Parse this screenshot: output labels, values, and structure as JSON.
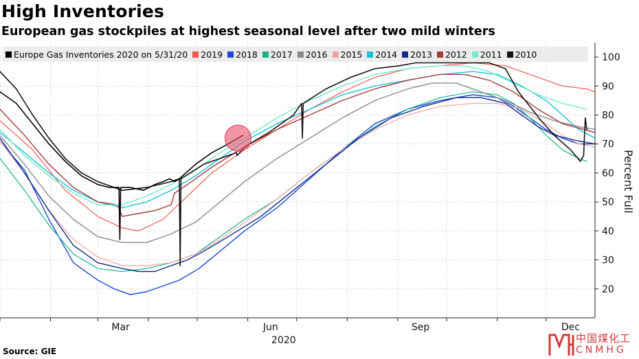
{
  "header": {
    "title": "High Inventories",
    "subtitle": "European gas stockpiles at highest seasonal level after two mild winters"
  },
  "footer": {
    "source": "Source: GIE"
  },
  "watermark": {
    "cn": "中国煤化工",
    "en": "CNMHG",
    "color": "#cf3a3a"
  },
  "chart_data": {
    "type": "line",
    "title": "High Inventories",
    "subtitle": "European gas stockpiles at highest seasonal level after two mild winters",
    "ylabel": "Percent Full",
    "xlabel": "2020",
    "ylim": [
      10,
      105
    ],
    "xlim": [
      0,
      365
    ],
    "yticks": [
      20,
      30,
      40,
      50,
      60,
      70,
      80,
      90,
      100
    ],
    "xticks": [
      {
        "label": "Mar",
        "x": 74
      },
      {
        "label": "Jun",
        "x": 166
      },
      {
        "label": "Sep",
        "x": 258
      },
      {
        "label": "Dec",
        "x": 350
      }
    ],
    "minor_xticks": [
      0,
      31,
      60,
      91,
      121,
      152,
      182,
      213,
      244,
      274,
      305,
      335
    ],
    "x_unit": "day of year",
    "grid": true,
    "legend_position": "top",
    "highlight": {
      "x": 146,
      "y": 72,
      "color": "#e8506a"
    },
    "series": [
      {
        "name": "Europe Gas Inventories 2020 on 5/31/20",
        "color": "#000000",
        "width": 1.6,
        "points": [
          [
            0,
            88
          ],
          [
            10,
            84
          ],
          [
            20,
            77
          ],
          [
            30,
            70
          ],
          [
            40,
            64
          ],
          [
            50,
            59
          ],
          [
            60,
            56
          ],
          [
            67,
            55
          ],
          [
            70,
            55
          ],
          [
            73,
            55
          ],
          [
            73.5,
            37
          ],
          [
            74,
            55
          ],
          [
            80,
            55
          ],
          [
            88,
            54
          ],
          [
            95,
            56
          ],
          [
            100,
            57
          ],
          [
            104,
            58
          ],
          [
            107,
            57
          ],
          [
            110,
            58
          ],
          [
            114,
            60
          ],
          [
            120,
            63
          ],
          [
            130,
            67
          ],
          [
            140,
            70
          ],
          [
            146,
            72
          ],
          [
            149,
            73
          ]
        ]
      },
      {
        "name": "2019",
        "color": "#ef5a4f",
        "width": 1.2,
        "points": [
          [
            0,
            78
          ],
          [
            20,
            68
          ],
          [
            40,
            54
          ],
          [
            60,
            45
          ],
          [
            75,
            41
          ],
          [
            85,
            40
          ],
          [
            100,
            44
          ],
          [
            115,
            52
          ],
          [
            130,
            60
          ],
          [
            150,
            68
          ],
          [
            170,
            75
          ],
          [
            190,
            82
          ],
          [
            210,
            88
          ],
          [
            230,
            93
          ],
          [
            250,
            96
          ],
          [
            270,
            97
          ],
          [
            290,
            98
          ],
          [
            310,
            97
          ],
          [
            320,
            95
          ],
          [
            330,
            93
          ],
          [
            345,
            90
          ],
          [
            360,
            89
          ],
          [
            365,
            88
          ]
        ]
      },
      {
        "name": "2018",
        "color": "#1a47d8",
        "width": 1.4,
        "points": [
          [
            0,
            71
          ],
          [
            15,
            61
          ],
          [
            30,
            44
          ],
          [
            45,
            29
          ],
          [
            60,
            23
          ],
          [
            70,
            20
          ],
          [
            80,
            18
          ],
          [
            90,
            19
          ],
          [
            100,
            21
          ],
          [
            110,
            23
          ],
          [
            122,
            27
          ],
          [
            135,
            33
          ],
          [
            150,
            40
          ],
          [
            170,
            48
          ],
          [
            190,
            58
          ],
          [
            210,
            68
          ],
          [
            230,
            77
          ],
          [
            250,
            82
          ],
          [
            270,
            85
          ],
          [
            290,
            87
          ],
          [
            305,
            86
          ],
          [
            315,
            83
          ],
          [
            325,
            79
          ],
          [
            335,
            75
          ],
          [
            345,
            72
          ],
          [
            355,
            70
          ],
          [
            365,
            70
          ]
        ]
      },
      {
        "name": "2017",
        "color": "#14b38a",
        "width": 1.2,
        "points": [
          [
            0,
            65
          ],
          [
            15,
            54
          ],
          [
            30,
            42
          ],
          [
            45,
            32
          ],
          [
            60,
            27
          ],
          [
            75,
            26
          ],
          [
            90,
            27
          ],
          [
            105,
            29
          ],
          [
            120,
            32
          ],
          [
            135,
            38
          ],
          [
            150,
            44
          ],
          [
            170,
            51
          ],
          [
            190,
            60
          ],
          [
            210,
            68
          ],
          [
            230,
            76
          ],
          [
            250,
            82
          ],
          [
            270,
            86
          ],
          [
            290,
            88
          ],
          [
            305,
            87
          ],
          [
            315,
            84
          ],
          [
            325,
            79
          ],
          [
            335,
            73
          ],
          [
            345,
            68
          ],
          [
            355,
            65
          ],
          [
            360,
            64
          ]
        ]
      },
      {
        "name": "2016",
        "color": "#8a8a8a",
        "width": 1.4,
        "points": [
          [
            0,
            73
          ],
          [
            15,
            63
          ],
          [
            30,
            52
          ],
          [
            45,
            44
          ],
          [
            60,
            38
          ],
          [
            75,
            36
          ],
          [
            90,
            36
          ],
          [
            105,
            39
          ],
          [
            120,
            43
          ],
          [
            135,
            50
          ],
          [
            150,
            57
          ],
          [
            170,
            65
          ],
          [
            190,
            72
          ],
          [
            210,
            79
          ],
          [
            230,
            85
          ],
          [
            250,
            89
          ],
          [
            265,
            91
          ],
          [
            280,
            91
          ],
          [
            295,
            88
          ],
          [
            310,
            85
          ],
          [
            325,
            81
          ],
          [
            340,
            78
          ],
          [
            355,
            76
          ],
          [
            365,
            75
          ]
        ]
      },
      {
        "name": "2015",
        "color": "#f7a3a3",
        "width": 1.2,
        "points": [
          [
            0,
            71
          ],
          [
            15,
            60
          ],
          [
            30,
            47
          ],
          [
            45,
            37
          ],
          [
            60,
            31
          ],
          [
            75,
            28
          ],
          [
            90,
            28
          ],
          [
            105,
            29
          ],
          [
            120,
            32
          ],
          [
            135,
            37
          ],
          [
            150,
            43
          ],
          [
            170,
            51
          ],
          [
            190,
            60
          ],
          [
            210,
            68
          ],
          [
            230,
            75
          ],
          [
            250,
            80
          ],
          [
            270,
            83
          ],
          [
            290,
            84
          ],
          [
            305,
            84
          ],
          [
            320,
            82
          ],
          [
            335,
            77
          ],
          [
            345,
            73
          ],
          [
            355,
            70
          ],
          [
            365,
            69
          ]
        ]
      },
      {
        "name": "2014",
        "color": "#17c3d8",
        "width": 1.4,
        "points": [
          [
            0,
            74
          ],
          [
            15,
            67
          ],
          [
            30,
            60
          ],
          [
            45,
            54
          ],
          [
            60,
            50
          ],
          [
            75,
            48
          ],
          [
            90,
            50
          ],
          [
            105,
            54
          ],
          [
            120,
            59
          ],
          [
            135,
            65
          ],
          [
            150,
            71
          ],
          [
            170,
            77
          ],
          [
            190,
            82
          ],
          [
            210,
            87
          ],
          [
            230,
            90
          ],
          [
            250,
            92
          ],
          [
            270,
            94
          ],
          [
            290,
            95
          ],
          [
            305,
            94
          ],
          [
            320,
            90
          ],
          [
            335,
            85
          ],
          [
            345,
            80
          ],
          [
            355,
            75
          ],
          [
            365,
            72
          ]
        ]
      },
      {
        "name": "2013",
        "color": "#0f2a86",
        "width": 1.4,
        "points": [
          [
            0,
            72
          ],
          [
            15,
            60
          ],
          [
            30,
            47
          ],
          [
            45,
            35
          ],
          [
            60,
            29
          ],
          [
            75,
            27
          ],
          [
            85,
            26
          ],
          [
            95,
            26
          ],
          [
            105,
            28
          ],
          [
            115,
            30
          ],
          [
            125,
            33
          ],
          [
            140,
            38
          ],
          [
            160,
            45
          ],
          [
            180,
            54
          ],
          [
            200,
            63
          ],
          [
            220,
            72
          ],
          [
            240,
            79
          ],
          [
            260,
            83
          ],
          [
            280,
            86
          ],
          [
            295,
            86
          ],
          [
            310,
            84
          ],
          [
            320,
            80
          ],
          [
            330,
            76
          ],
          [
            340,
            73
          ],
          [
            355,
            71
          ],
          [
            365,
            70
          ]
        ]
      },
      {
        "name": "2012",
        "color": "#a33a3a",
        "width": 1.4,
        "points": [
          [
            0,
            82
          ],
          [
            15,
            73
          ],
          [
            30,
            63
          ],
          [
            45,
            55
          ],
          [
            60,
            50
          ],
          [
            72,
            49
          ],
          [
            75,
            45
          ],
          [
            85,
            46
          ],
          [
            95,
            47
          ],
          [
            105,
            49
          ],
          [
            107,
            53
          ],
          [
            115,
            56
          ],
          [
            130,
            62
          ],
          [
            150,
            69
          ],
          [
            170,
            75
          ],
          [
            190,
            80
          ],
          [
            210,
            85
          ],
          [
            230,
            89
          ],
          [
            250,
            92
          ],
          [
            270,
            94
          ],
          [
            285,
            94
          ],
          [
            300,
            92
          ],
          [
            315,
            88
          ],
          [
            330,
            82
          ],
          [
            345,
            77
          ],
          [
            365,
            74
          ]
        ]
      },
      {
        "name": "2011",
        "color": "#79e8c8",
        "width": 1.4,
        "points": [
          [
            0,
            75
          ],
          [
            15,
            66
          ],
          [
            30,
            59
          ],
          [
            45,
            53
          ],
          [
            60,
            49
          ],
          [
            75,
            49
          ],
          [
            90,
            52
          ],
          [
            105,
            56
          ],
          [
            120,
            61
          ],
          [
            135,
            67
          ],
          [
            150,
            72
          ],
          [
            170,
            79
          ],
          [
            190,
            85
          ],
          [
            210,
            90
          ],
          [
            230,
            94
          ],
          [
            250,
            96
          ],
          [
            270,
            97
          ],
          [
            285,
            97
          ],
          [
            300,
            95
          ],
          [
            315,
            91
          ],
          [
            330,
            87
          ],
          [
            345,
            84
          ],
          [
            360,
            82
          ]
        ]
      },
      {
        "name": "2010",
        "color": "#111111",
        "width": 1.6,
        "points": [
          [
            0,
            95
          ],
          [
            10,
            89
          ],
          [
            20,
            80
          ],
          [
            30,
            72
          ],
          [
            40,
            65
          ],
          [
            50,
            60
          ],
          [
            60,
            57
          ],
          [
            75,
            54
          ],
          [
            90,
            55
          ],
          [
            105,
            57
          ],
          [
            110,
            58
          ],
          [
            110.5,
            28
          ],
          [
            111,
            58
          ],
          [
            125,
            63
          ],
          [
            140,
            66
          ],
          [
            145,
            67
          ],
          [
            145.5,
            66
          ],
          [
            150,
            69
          ],
          [
            165,
            74
          ],
          [
            180,
            80
          ],
          [
            185,
            84
          ],
          [
            185.5,
            72
          ],
          [
            186,
            84
          ],
          [
            200,
            89
          ],
          [
            215,
            93
          ],
          [
            230,
            96
          ],
          [
            245,
            97
          ],
          [
            255,
            98
          ],
          [
            270,
            98
          ],
          [
            285,
            98
          ],
          [
            300,
            98
          ],
          [
            310,
            96
          ],
          [
            318,
            88
          ],
          [
            325,
            83
          ],
          [
            332,
            78
          ],
          [
            340,
            73
          ],
          [
            350,
            68
          ],
          [
            356,
            64
          ],
          [
            358,
            66
          ],
          [
            359,
            79
          ],
          [
            360,
            75
          ]
        ]
      }
    ]
  }
}
